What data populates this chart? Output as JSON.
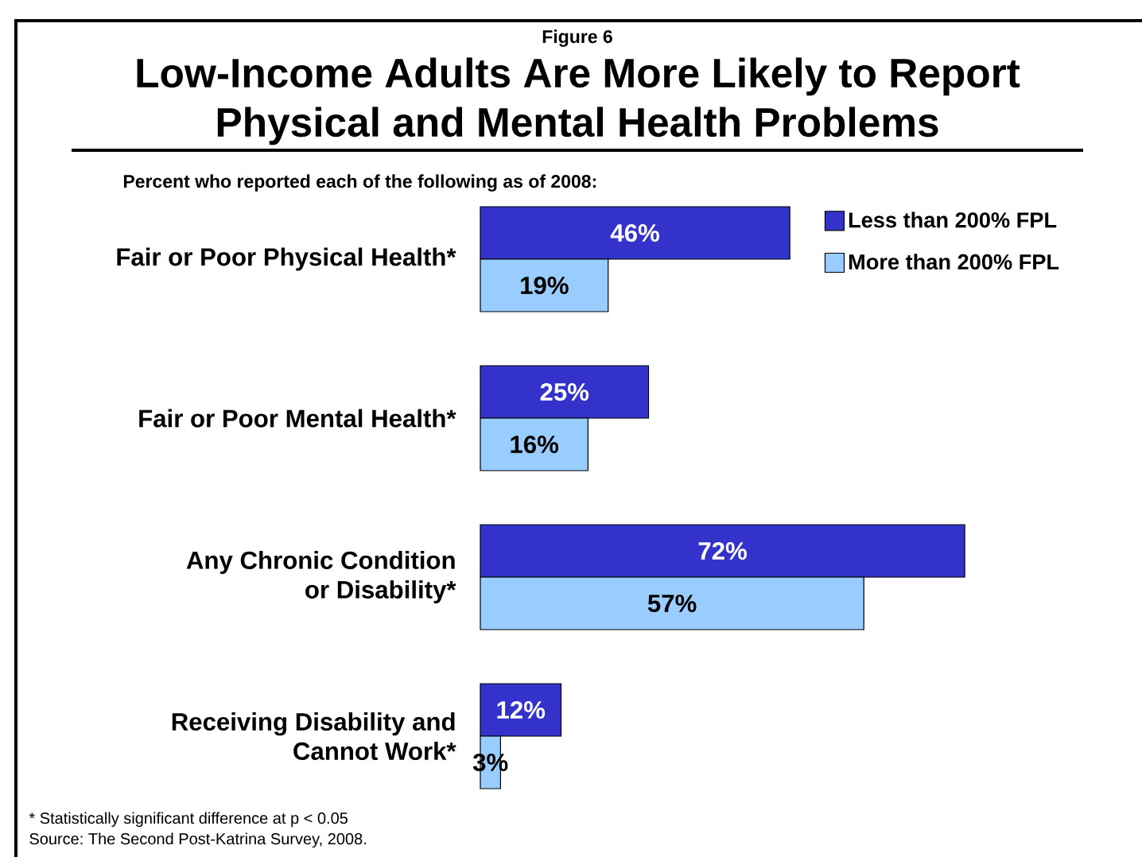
{
  "chart_data": {
    "type": "bar",
    "orientation": "horizontal",
    "title": "Low-Income Adults Are More Likely to Report Physical and Mental Health Problems",
    "subtitle": "Percent who reported each of the following as of 2008:",
    "annotations": [
      "Figure 6",
      "* Statistically significant difference at p < 0.05",
      "Source: The Second Post-Katrina Survey, 2008."
    ],
    "categories": [
      "Fair or Poor Physical Health*",
      "Fair or Poor Mental Health*",
      "Any Chronic Condition\nor Disability*",
      "Receiving Disability and\nCannot Work*"
    ],
    "series": [
      {
        "name": "Less than 200% FPL",
        "color": "#3333cc",
        "values": [
          46,
          25,
          72,
          12
        ],
        "value_labels": [
          "46%",
          "25%",
          "72%",
          "12%"
        ]
      },
      {
        "name": "More than 200% FPL",
        "color": "#99ccff",
        "values": [
          19,
          16,
          57,
          3
        ],
        "value_labels": [
          "19%",
          "16%",
          "57%",
          "3%"
        ]
      }
    ],
    "legend": "top right"
  }
}
